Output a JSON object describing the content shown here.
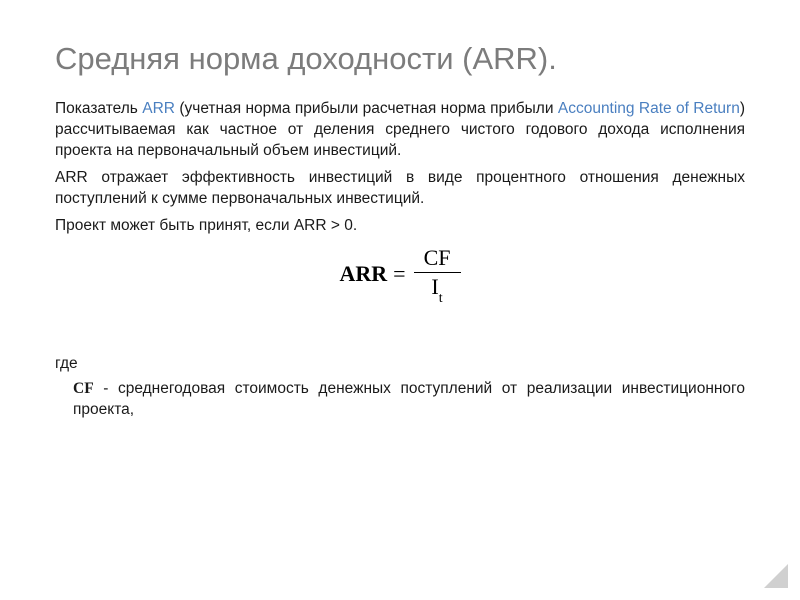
{
  "title": "Средняя норма доходности (ARR).",
  "para1_pre": "Показатель ",
  "para1_link1": "ARR",
  "para1_mid": " (учетная норма прибыли расчетная норма прибыли ",
  "para1_link2": "Accounting Rate of Return",
  "para1_post": ") рассчитываемая как частное от деления среднего чистого годового дохода исполнения проекта на первоначальный объем инвестиций.",
  "para2": "ARR отражает эффективность инвестиций в виде процентного отношения денежных поступлений к сумме первоначальных инвестиций.",
  "para3": "Проект может быть принят, если ARR > 0.",
  "formula": {
    "lhs": "ARR",
    "eq": "=",
    "num": "CF",
    "den_base": "I",
    "den_sub": "t"
  },
  "where_label": "где",
  "where_def_bold": "CF",
  "where_def_rest": " - среднегодовая стоимость денежных поступлений от реализации инвестиционного проекта,",
  "colors": {
    "title": "#7c7c7c",
    "link": "#4a7fc0",
    "text": "#1a1a1a",
    "background": "#ffffff",
    "corner": "#d0d0d0"
  },
  "fonts": {
    "title_size": 31,
    "body_size": 15.5,
    "formula_size": 22
  }
}
